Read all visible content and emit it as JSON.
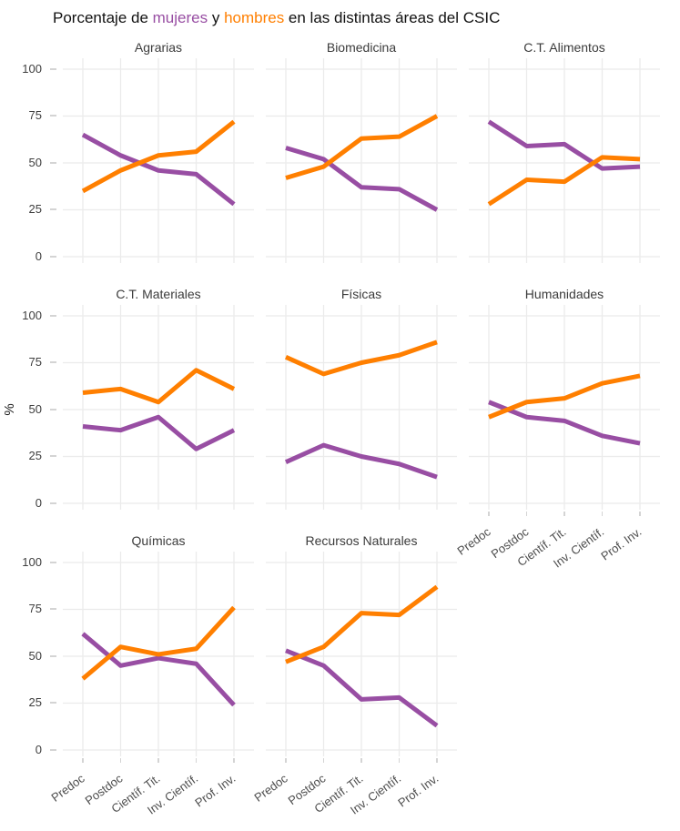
{
  "title": {
    "prefix": "Porcentaje de ",
    "mujeres_word": "mujeres",
    "connector": " y ",
    "hombres_word": "hombres",
    "suffix": " en las distintas áreas del CSIC",
    "full": "Porcentaje de mujeres y hombres en las distintas áreas del CSIC"
  },
  "colors": {
    "mujeres": "#984EA3",
    "hombres": "#FF7F00",
    "gridline": "#EBEBEB",
    "axis_text": "#404040",
    "tick_mark": "#D4D4D4"
  },
  "ylabel": "%",
  "chart_data": {
    "type": "line",
    "facet_layout": "3 columns x 3 rows, 8 panels",
    "categories": [
      "Predoc",
      "Postdoc",
      "Científ. Tit.",
      "Inv. Científ.",
      "Prof. Inv."
    ],
    "y_ticks": [
      "100",
      "75",
      "50",
      "25",
      "0"
    ],
    "ylim": [
      0,
      100
    ],
    "ylabel": "%",
    "grid": true,
    "legend_position": "encoded in title words (mujeres=purple, hombres=orange)",
    "series_names": [
      "mujeres",
      "hombres"
    ],
    "facets": [
      {
        "title": "Agrarias",
        "mujeres": [
          65,
          54,
          46,
          44,
          28
        ],
        "hombres": [
          35,
          46,
          54,
          56,
          72
        ]
      },
      {
        "title": "Biomedicina",
        "mujeres": [
          58,
          52,
          37,
          36,
          25
        ],
        "hombres": [
          42,
          48,
          63,
          64,
          75
        ]
      },
      {
        "title": "C.T. Alimentos",
        "mujeres": [
          72,
          59,
          60,
          47,
          48
        ],
        "hombres": [
          28,
          41,
          40,
          53,
          52
        ]
      },
      {
        "title": "C.T. Materiales",
        "mujeres": [
          41,
          39,
          46,
          29,
          39
        ],
        "hombres": [
          59,
          61,
          54,
          71,
          61
        ]
      },
      {
        "title": "Físicas",
        "mujeres": [
          22,
          31,
          25,
          21,
          14
        ],
        "hombres": [
          78,
          69,
          75,
          79,
          86
        ]
      },
      {
        "title": "Humanidades",
        "mujeres": [
          54,
          46,
          44,
          36,
          32
        ],
        "hombres": [
          46,
          54,
          56,
          64,
          68
        ]
      },
      {
        "title": "Químicas",
        "mujeres": [
          62,
          45,
          49,
          46,
          24
        ],
        "hombres": [
          38,
          55,
          51,
          54,
          76
        ]
      },
      {
        "title": "Recursos Naturales",
        "mujeres": [
          53,
          45,
          27,
          28,
          13
        ],
        "hombres": [
          47,
          55,
          73,
          72,
          87
        ]
      }
    ]
  }
}
